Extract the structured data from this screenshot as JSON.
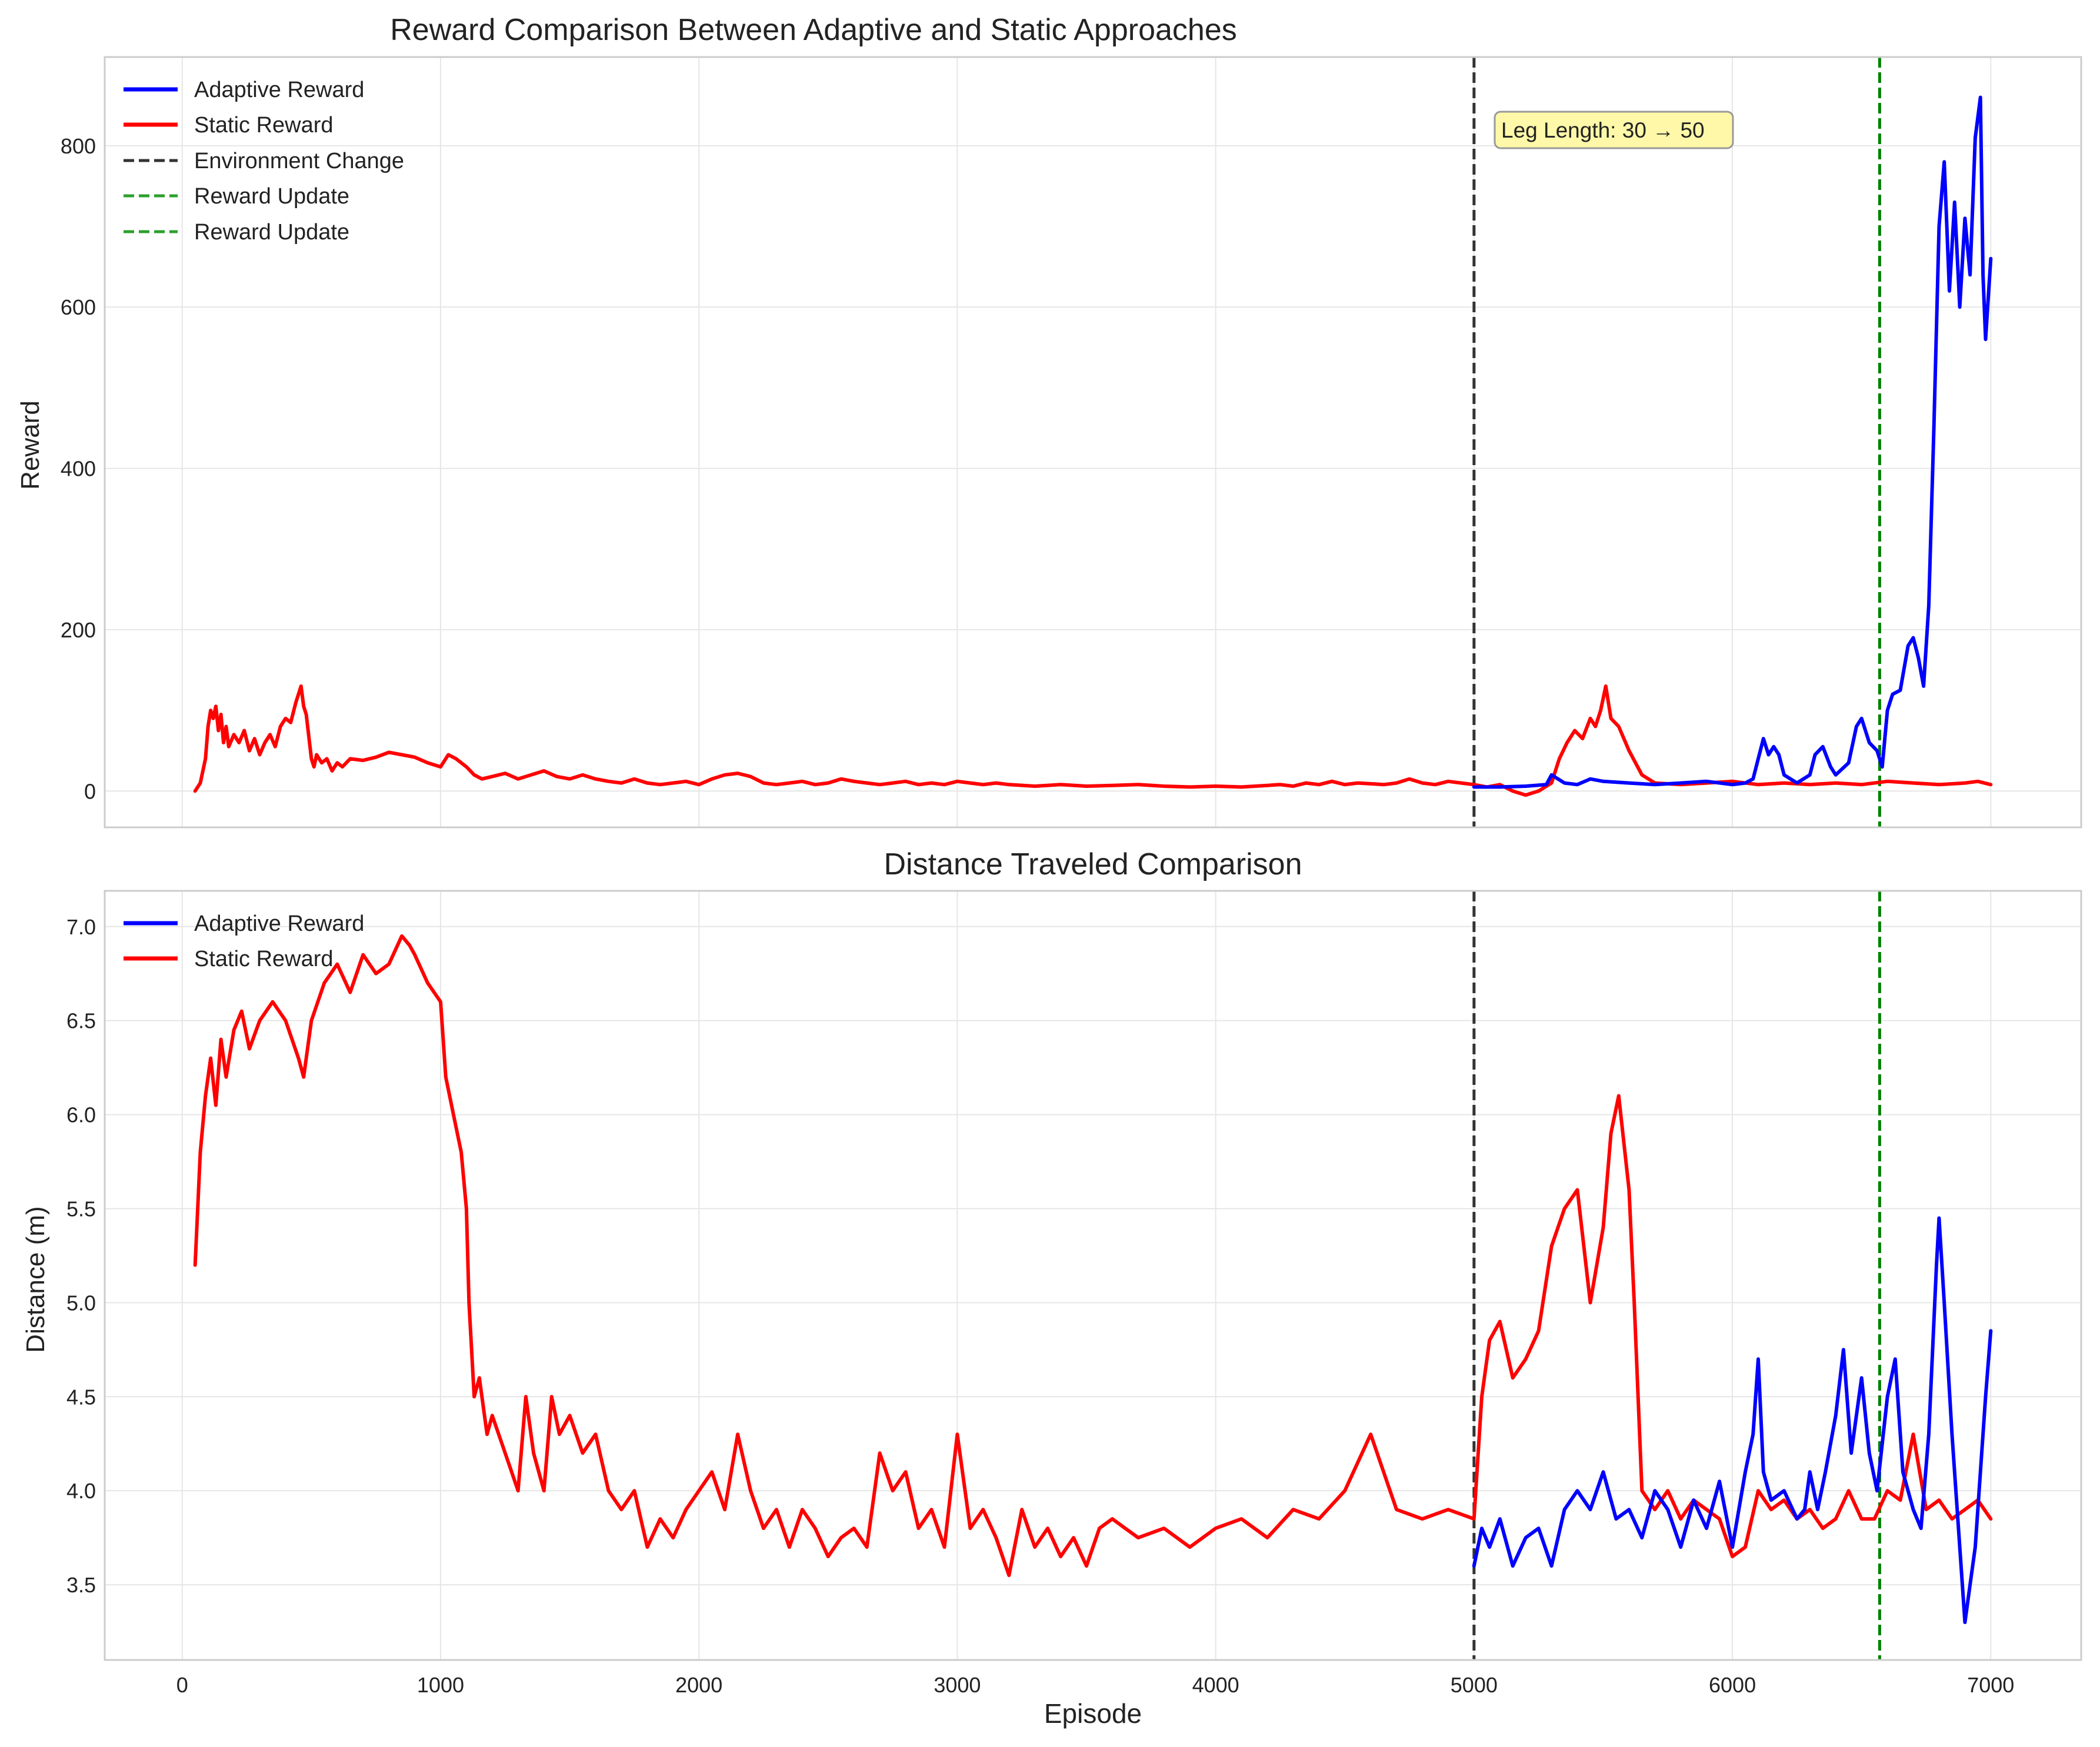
{
  "figure": {
    "xlabel": "Episode"
  },
  "chart_data": [
    {
      "type": "line",
      "title": "Reward Comparison Between Adaptive and Static Approaches",
      "xlabel": "",
      "ylabel": "Reward",
      "xlim": [
        -300,
        7350
      ],
      "ylim": [
        -45,
        910
      ],
      "xticks": [
        0,
        1000,
        2000,
        3000,
        4000,
        5000,
        6000,
        7000
      ],
      "yticks": [
        0,
        200,
        400,
        600,
        800
      ],
      "grid": true,
      "legend_position": "top-left",
      "legend": [
        {
          "label": "Adaptive Reward",
          "color": "#0000ff",
          "style": "solid"
        },
        {
          "label": "Static Reward",
          "color": "#ff0000",
          "style": "solid"
        },
        {
          "label": "Environment Change",
          "color": "#333333",
          "style": "dashed"
        },
        {
          "label": "Reward Update",
          "color": "#2ca02c",
          "style": "dashed"
        },
        {
          "label": "Reward Update",
          "color": "#2ca02c",
          "style": "dashed"
        }
      ],
      "annotation": {
        "text": "Leg Length: 30 → 50",
        "x": 5075,
        "y": 815
      },
      "vlines": [
        {
          "x": 5000,
          "color": "#333333"
        },
        {
          "x": 6570,
          "color": "#008000"
        }
      ],
      "series": [
        {
          "name": "Static Reward",
          "color": "#ff0000",
          "x": [
            50,
            70,
            90,
            100,
            110,
            120,
            130,
            140,
            150,
            160,
            170,
            180,
            200,
            220,
            240,
            260,
            280,
            300,
            320,
            340,
            360,
            380,
            400,
            420,
            440,
            460,
            470,
            480,
            500,
            510,
            520,
            540,
            560,
            580,
            600,
            620,
            650,
            700,
            750,
            800,
            850,
            900,
            950,
            1000,
            1030,
            1060,
            1100,
            1130,
            1160,
            1200,
            1250,
            1300,
            1350,
            1400,
            1450,
            1500,
            1550,
            1600,
            1650,
            1700,
            1750,
            1800,
            1850,
            1900,
            1950,
            2000,
            2050,
            2100,
            2150,
            2200,
            2250,
            2300,
            2350,
            2400,
            2450,
            2500,
            2550,
            2600,
            2650,
            2700,
            2750,
            2800,
            2850,
            2900,
            2950,
            3000,
            3050,
            3100,
            3150,
            3200,
            3300,
            3400,
            3500,
            3600,
            3700,
            3800,
            3900,
            4000,
            4100,
            4200,
            4250,
            4300,
            4350,
            4400,
            4450,
            4500,
            4550,
            4600,
            4650,
            4700,
            4750,
            4800,
            4850,
            4900,
            4950,
            5000,
            5050,
            5100,
            5150,
            5200,
            5250,
            5300,
            5330,
            5360,
            5390,
            5420,
            5450,
            5470,
            5490,
            5510,
            5530,
            5560,
            5600,
            5650,
            5700,
            5800,
            5900,
            6000,
            6100,
            6200,
            6300,
            6400,
            6500,
            6600,
            6700,
            6800,
            6900,
            6950,
            7000
          ],
          "y": [
            0,
            10,
            40,
            80,
            100,
            90,
            105,
            75,
            95,
            60,
            80,
            55,
            70,
            60,
            75,
            50,
            65,
            45,
            60,
            70,
            55,
            80,
            90,
            85,
            110,
            130,
            105,
            95,
            40,
            30,
            45,
            35,
            40,
            25,
            35,
            30,
            40,
            38,
            42,
            48,
            45,
            42,
            35,
            30,
            45,
            40,
            30,
            20,
            15,
            18,
            22,
            15,
            20,
            25,
            18,
            15,
            20,
            15,
            12,
            10,
            15,
            10,
            8,
            10,
            12,
            8,
            15,
            20,
            22,
            18,
            10,
            8,
            10,
            12,
            8,
            10,
            15,
            12,
            10,
            8,
            10,
            12,
            8,
            10,
            8,
            12,
            10,
            8,
            10,
            8,
            6,
            8,
            6,
            7,
            8,
            6,
            5,
            6,
            5,
            7,
            8,
            6,
            10,
            8,
            12,
            8,
            10,
            9,
            8,
            10,
            15,
            10,
            8,
            12,
            10,
            8,
            5,
            8,
            0,
            -5,
            0,
            10,
            40,
            60,
            75,
            65,
            90,
            80,
            100,
            130,
            90,
            80,
            50,
            20,
            10,
            8,
            10,
            12,
            8,
            10,
            8,
            10,
            8,
            12,
            10,
            8,
            10,
            12,
            8
          ]
        },
        {
          "name": "Adaptive Reward",
          "color": "#0000ff",
          "x": [
            5000,
            5100,
            5200,
            5280,
            5300,
            5350,
            5400,
            5450,
            5500,
            5600,
            5700,
            5800,
            5900,
            6000,
            6050,
            6080,
            6100,
            6120,
            6140,
            6160,
            6180,
            6200,
            6250,
            6300,
            6320,
            6350,
            6380,
            6400,
            6450,
            6480,
            6500,
            6530,
            6560,
            6580,
            6600,
            6620,
            6650,
            6680,
            6700,
            6720,
            6740,
            6760,
            6780,
            6800,
            6820,
            6840,
            6860,
            6880,
            6900,
            6920,
            6940,
            6960,
            6970,
            6980,
            7000
          ],
          "y": [
            5,
            5,
            6,
            8,
            20,
            10,
            8,
            15,
            12,
            10,
            8,
            10,
            12,
            8,
            10,
            15,
            40,
            65,
            45,
            55,
            45,
            20,
            10,
            20,
            45,
            55,
            30,
            20,
            35,
            80,
            90,
            60,
            50,
            30,
            100,
            120,
            125,
            180,
            190,
            165,
            130,
            230,
            450,
            700,
            780,
            620,
            730,
            600,
            710,
            640,
            810,
            860,
            640,
            560,
            660
          ]
        }
      ]
    },
    {
      "type": "line",
      "title": "Distance Traveled Comparison",
      "xlabel": "Episode",
      "ylabel": "Distance (m)",
      "xlim": [
        -300,
        7350
      ],
      "ylim": [
        3.1,
        7.19
      ],
      "xticks": [
        0,
        1000,
        2000,
        3000,
        4000,
        5000,
        6000,
        7000
      ],
      "yticks": [
        3.5,
        4.0,
        4.5,
        5.0,
        5.5,
        6.0,
        6.5,
        7.0
      ],
      "grid": true,
      "legend_position": "top-left",
      "legend": [
        {
          "label": "Adaptive Reward",
          "color": "#0000ff",
          "style": "solid"
        },
        {
          "label": "Static Reward",
          "color": "#ff0000",
          "style": "solid"
        }
      ],
      "vlines": [
        {
          "x": 5000,
          "color": "#333333"
        },
        {
          "x": 6570,
          "color": "#008000"
        }
      ],
      "series": [
        {
          "name": "Static Reward",
          "color": "#ff0000",
          "x": [
            50,
            70,
            90,
            110,
            130,
            150,
            170,
            200,
            230,
            260,
            300,
            350,
            400,
            450,
            470,
            500,
            550,
            600,
            650,
            700,
            750,
            800,
            850,
            880,
            900,
            950,
            1000,
            1020,
            1050,
            1080,
            1100,
            1110,
            1130,
            1150,
            1180,
            1200,
            1250,
            1300,
            1330,
            1360,
            1400,
            1430,
            1460,
            1500,
            1550,
            1600,
            1650,
            1700,
            1750,
            1800,
            1850,
            1900,
            1950,
            2000,
            2050,
            2100,
            2150,
            2200,
            2250,
            2300,
            2350,
            2400,
            2450,
            2500,
            2550,
            2600,
            2650,
            2700,
            2750,
            2800,
            2850,
            2900,
            2950,
            3000,
            3050,
            3100,
            3150,
            3200,
            3250,
            3300,
            3350,
            3400,
            3450,
            3500,
            3550,
            3600,
            3700,
            3800,
            3900,
            4000,
            4100,
            4200,
            4300,
            4400,
            4500,
            4600,
            4650,
            4700,
            4800,
            4900,
            5000,
            5030,
            5060,
            5100,
            5150,
            5200,
            5250,
            5300,
            5350,
            5400,
            5450,
            5500,
            5530,
            5560,
            5600,
            5620,
            5650,
            5700,
            5750,
            5800,
            5850,
            5900,
            5950,
            6000,
            6050,
            6100,
            6150,
            6200,
            6250,
            6300,
            6350,
            6400,
            6450,
            6500,
            6550,
            6600,
            6650,
            6700,
            6750,
            6800,
            6850,
            6900,
            6950,
            7000
          ],
          "y": [
            5.2,
            5.8,
            6.1,
            6.3,
            6.05,
            6.4,
            6.2,
            6.45,
            6.55,
            6.35,
            6.5,
            6.6,
            6.5,
            6.3,
            6.2,
            6.5,
            6.7,
            6.8,
            6.65,
            6.85,
            6.75,
            6.8,
            6.95,
            6.9,
            6.85,
            6.7,
            6.6,
            6.2,
            6.0,
            5.8,
            5.5,
            5.0,
            4.5,
            4.6,
            4.3,
            4.4,
            4.2,
            4.0,
            4.5,
            4.2,
            4.0,
            4.5,
            4.3,
            4.4,
            4.2,
            4.3,
            4.0,
            3.9,
            4.0,
            3.7,
            3.85,
            3.75,
            3.9,
            4.0,
            4.1,
            3.9,
            4.3,
            4.0,
            3.8,
            3.9,
            3.7,
            3.9,
            3.8,
            3.65,
            3.75,
            3.8,
            3.7,
            4.2,
            4.0,
            4.1,
            3.8,
            3.9,
            3.7,
            4.3,
            3.8,
            3.9,
            3.75,
            3.55,
            3.9,
            3.7,
            3.8,
            3.65,
            3.75,
            3.6,
            3.8,
            3.85,
            3.75,
            3.8,
            3.7,
            3.8,
            3.85,
            3.75,
            3.9,
            3.85,
            4.0,
            4.3,
            4.1,
            3.9,
            3.85,
            3.9,
            3.85,
            4.5,
            4.8,
            4.9,
            4.6,
            4.7,
            4.85,
            5.3,
            5.5,
            5.6,
            5.0,
            5.4,
            5.9,
            6.1,
            5.6,
            5.0,
            4.0,
            3.9,
            4.0,
            3.85,
            3.95,
            3.9,
            3.85,
            3.65,
            3.7,
            4.0,
            3.9,
            3.95,
            3.85,
            3.9,
            3.8,
            3.85,
            4.0,
            3.85,
            3.85,
            4.0,
            3.95,
            4.3,
            3.9,
            3.95,
            3.85,
            3.9,
            3.95,
            3.85
          ]
        },
        {
          "name": "Adaptive Reward",
          "color": "#0000ff",
          "x": [
            5000,
            5030,
            5060,
            5100,
            5150,
            5200,
            5250,
            5300,
            5350,
            5400,
            5450,
            5500,
            5550,
            5600,
            5650,
            5700,
            5750,
            5800,
            5850,
            5900,
            5950,
            6000,
            6050,
            6080,
            6100,
            6120,
            6150,
            6200,
            6250,
            6280,
            6300,
            6330,
            6360,
            6400,
            6430,
            6460,
            6500,
            6530,
            6560,
            6600,
            6630,
            6660,
            6700,
            6730,
            6760,
            6790,
            6800,
            6820,
            6850,
            6870,
            6900,
            6920,
            6940,
            6960,
            6980,
            7000
          ],
          "y": [
            3.6,
            3.8,
            3.7,
            3.85,
            3.6,
            3.75,
            3.8,
            3.6,
            3.9,
            4.0,
            3.9,
            4.1,
            3.85,
            3.9,
            3.75,
            4.0,
            3.9,
            3.7,
            3.95,
            3.8,
            4.05,
            3.7,
            4.1,
            4.3,
            4.7,
            4.1,
            3.95,
            4.0,
            3.85,
            3.9,
            4.1,
            3.9,
            4.1,
            4.4,
            4.75,
            4.2,
            4.6,
            4.2,
            4.0,
            4.5,
            4.7,
            4.1,
            3.9,
            3.8,
            4.3,
            5.2,
            5.45,
            5.0,
            4.3,
            3.9,
            3.3,
            3.5,
            3.7,
            4.1,
            4.5,
            4.85
          ]
        }
      ]
    }
  ]
}
